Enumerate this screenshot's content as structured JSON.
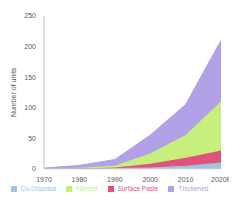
{
  "chart_data": {
    "type": "area",
    "y_label": "Number of units",
    "categories": [
      "1970",
      "1980",
      "1990",
      "2000",
      "2010",
      "2020F"
    ],
    "series": [
      {
        "name": "Co-Disposal",
        "color": "#9dc3e6",
        "values": [
          0,
          0,
          1,
          2,
          5,
          10
        ]
      },
      {
        "name": "Surface Paste",
        "color": "#e0527a",
        "values": [
          0,
          0.5,
          1,
          6,
          13,
          20
        ]
      },
      {
        "name": "Filtered",
        "color": "#c6ef7e",
        "values": [
          0,
          1,
          3,
          17,
          37,
          80
        ]
      },
      {
        "name": "Thickened",
        "color": "#b3a1e8",
        "values": [
          1,
          4,
          10,
          30,
          50,
          100
        ]
      }
    ],
    "ylim": [
      0,
      250
    ],
    "yticks": [
      0,
      50,
      100,
      150,
      200,
      250
    ],
    "stacked": true,
    "grid": false,
    "legend": "bottom"
  }
}
